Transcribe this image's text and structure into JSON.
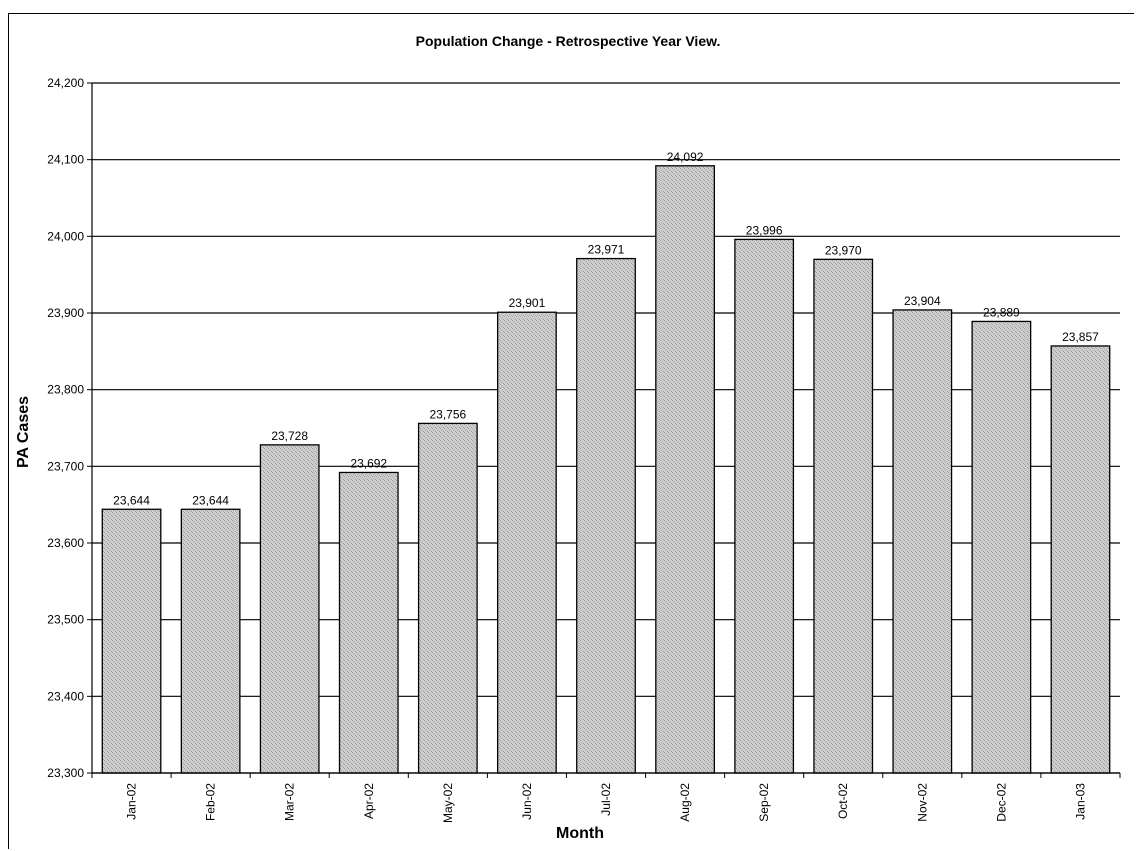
{
  "chart_data": {
    "type": "bar",
    "title": "Population Change - Retrospective Year View.",
    "xlabel": "Month",
    "ylabel": "PA Cases",
    "ylim": [
      23300,
      24200
    ],
    "yticks": [
      "23,300",
      "23,400",
      "23,500",
      "23,600",
      "23,700",
      "23,800",
      "23,900",
      "24,000",
      "24,100",
      "24,200"
    ],
    "categories": [
      "Jan-02",
      "Feb-02",
      "Mar-02",
      "Apr-02",
      "May-02",
      "Jun-02",
      "Jul-02",
      "Aug-02",
      "Sep-02",
      "Oct-02",
      "Nov-02",
      "Dec-02",
      "Jan-03"
    ],
    "values": [
      23644,
      23644,
      23728,
      23692,
      23756,
      23901,
      23971,
      24092,
      23996,
      23970,
      23904,
      23889,
      23857
    ],
    "value_labels": [
      "23,644",
      "23,644",
      "23,728",
      "23,692",
      "23,756",
      "23,901",
      "23,971",
      "24,092",
      "23,996",
      "23,970",
      "23,904",
      "23,889",
      "23,857"
    ],
    "grid": true,
    "legend": "none",
    "colors": {
      "bar_fill": "#c9c9c9",
      "bar_stroke": "#000000",
      "grid": "#000000"
    }
  }
}
